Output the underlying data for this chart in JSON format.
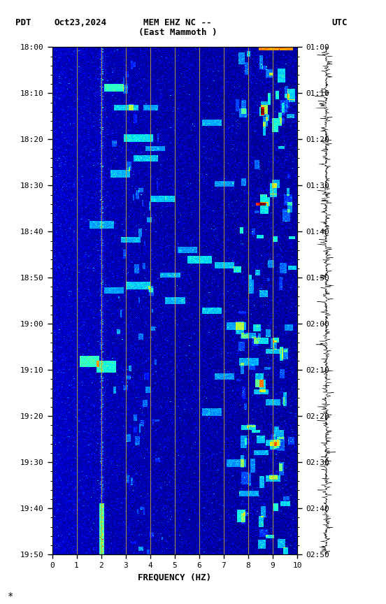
{
  "title_line1": "MEM EHZ NC --",
  "title_line2": "(East Mammoth )",
  "label_left": "PDT",
  "label_date": "Oct23,2024",
  "label_right": "UTC",
  "xlabel": "FREQUENCY (HZ)",
  "freq_min": 0,
  "freq_max": 10,
  "freq_ticks": [
    0,
    1,
    2,
    3,
    4,
    5,
    6,
    7,
    8,
    9,
    10
  ],
  "ytick_labels_left": [
    "18:00",
    "18:10",
    "18:20",
    "18:30",
    "18:40",
    "18:50",
    "19:00",
    "19:10",
    "19:20",
    "19:30",
    "19:40",
    "19:50"
  ],
  "ytick_labels_right": [
    "01:00",
    "01:10",
    "01:20",
    "01:30",
    "01:40",
    "01:50",
    "02:00",
    "02:10",
    "02:20",
    "02:30",
    "02:40",
    "02:50"
  ],
  "background_color": "#ffffff",
  "golden_lines_freq": [
    1.0,
    2.0,
    3.0,
    4.0,
    5.0,
    6.0,
    7.0,
    8.0,
    9.0
  ],
  "n_freq_bins": 300,
  "n_time_bins": 800
}
